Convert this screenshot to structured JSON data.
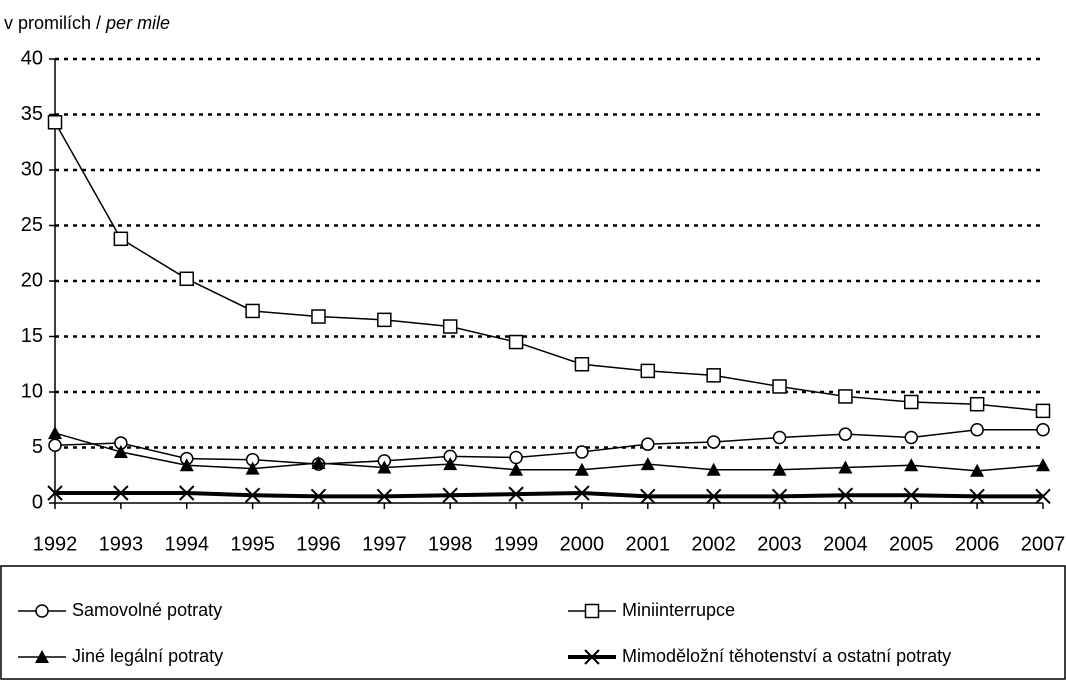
{
  "chart_data": {
    "type": "line",
    "y_label": "v promilích /",
    "y_label_en": "per mile",
    "categories": [
      "1992",
      "1993",
      "1994",
      "1995",
      "1996",
      "1997",
      "1998",
      "1999",
      "2000",
      "2001",
      "2002",
      "2003",
      "2004",
      "2005",
      "2006",
      "2007"
    ],
    "ylim": [
      0,
      40
    ],
    "yticks": [
      0,
      5,
      10,
      15,
      20,
      25,
      30,
      35,
      40
    ],
    "grid": true,
    "series": [
      {
        "name": "Samovolné potraty",
        "color": "#000000",
        "marker": "circle",
        "values": [
          5.2,
          5.4,
          4.0,
          3.9,
          3.5,
          3.8,
          4.2,
          4.1,
          4.6,
          5.3,
          5.5,
          5.9,
          6.2,
          5.9,
          6.6,
          6.6
        ]
      },
      {
        "name": "Miniinterrupce",
        "color": "#000000",
        "marker": "square",
        "values": [
          34.3,
          23.8,
          20.2,
          17.3,
          16.8,
          16.5,
          15.9,
          14.5,
          12.5,
          11.9,
          11.5,
          10.5,
          9.6,
          9.1,
          8.9,
          8.3
        ]
      },
      {
        "name": "Jiné legální potraty",
        "color": "#000000",
        "marker": "triangle",
        "values": [
          6.3,
          4.6,
          3.4,
          3.1,
          3.6,
          3.2,
          3.5,
          3.0,
          3.0,
          3.5,
          3.0,
          3.0,
          3.2,
          3.4,
          2.9,
          3.4
        ]
      },
      {
        "name": "Mimoděložní těhotenství a ostatní potraty",
        "color": "#000000",
        "marker": "x",
        "values": [
          0.9,
          0.9,
          0.9,
          0.7,
          0.6,
          0.6,
          0.7,
          0.8,
          0.9,
          0.6,
          0.6,
          0.6,
          0.7,
          0.7,
          0.6,
          0.6
        ]
      }
    ]
  }
}
